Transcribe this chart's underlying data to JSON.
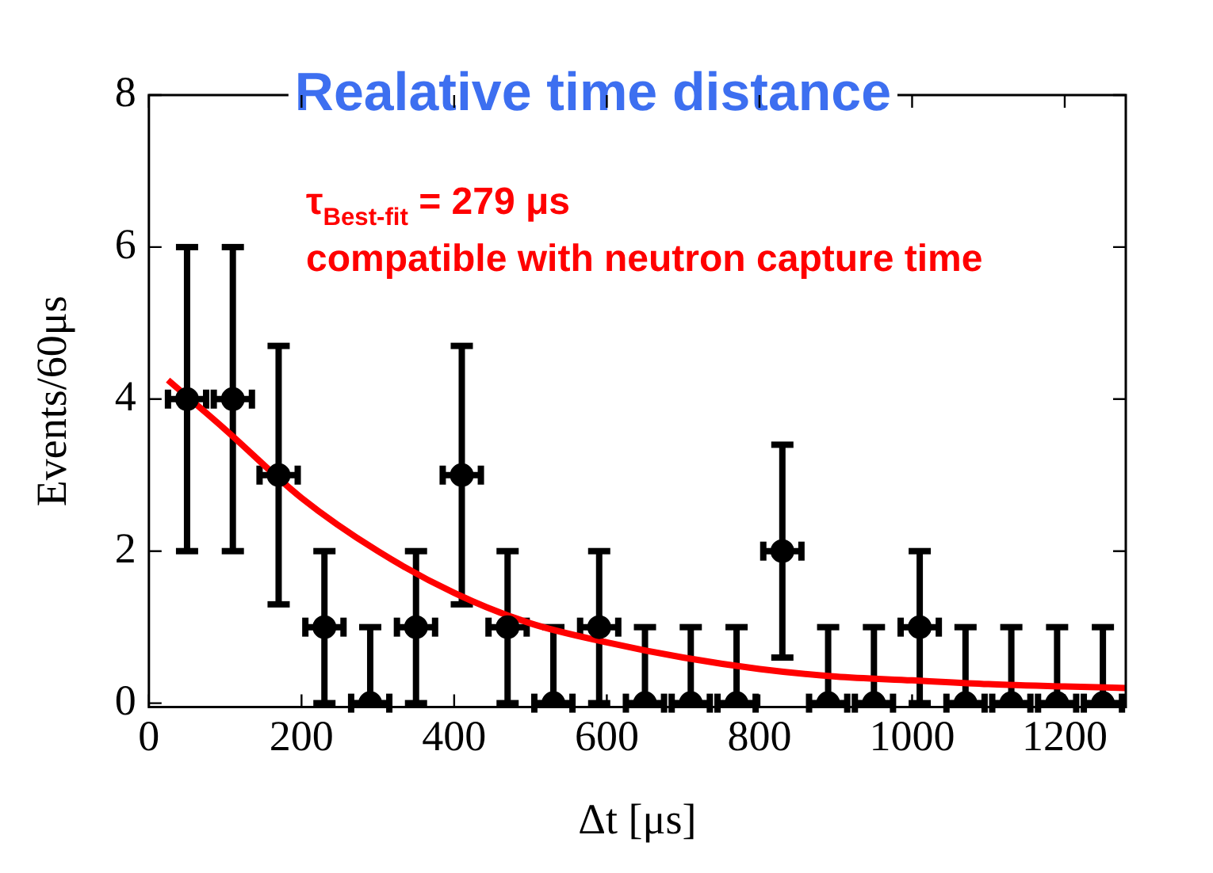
{
  "chart_data": {
    "type": "scatter",
    "title": "Realative time distance",
    "xlabel": "Δt [μs]",
    "ylabel": "Events/60μs",
    "xlim": [
      0,
      1280
    ],
    "xticks": [
      0,
      200,
      400,
      600,
      800,
      1000,
      1200
    ],
    "ylim": [
      -0.05,
      8
    ],
    "yticks": [
      0,
      2,
      4,
      6,
      8
    ],
    "grid": false,
    "legend": false,
    "marker": "circle",
    "annotations": [
      "τ$_{Best-fit}$ = 279 μs",
      "compatible with neutron capture time"
    ],
    "series": [
      {
        "color": "#000000",
        "x": [
          50,
          110,
          170,
          230,
          290,
          350,
          410,
          470,
          530,
          590,
          650,
          710,
          770,
          830,
          890,
          950,
          1010,
          1070,
          1130,
          1190,
          1250
        ],
        "values": [
          4,
          4,
          3,
          1,
          0,
          1,
          3,
          1,
          0,
          1,
          0,
          0,
          0,
          2,
          0,
          0,
          1,
          0,
          0,
          0,
          0
        ],
        "errors": [
          [
            2,
            2
          ],
          [
            2,
            2
          ],
          [
            1.7,
            1.7
          ],
          [
            1,
            1
          ],
          [
            0,
            1
          ],
          [
            1,
            1
          ],
          [
            1.7,
            1.7
          ],
          [
            1,
            1
          ],
          [
            0,
            1
          ],
          [
            1,
            1
          ],
          [
            0,
            1
          ],
          [
            0,
            1
          ],
          [
            0,
            1
          ],
          [
            1.4,
            1.4
          ],
          [
            0,
            1
          ],
          [
            0,
            1
          ],
          [
            1,
            1
          ],
          [
            0,
            1
          ],
          [
            0,
            1
          ],
          [
            0,
            1
          ],
          [
            0,
            1
          ]
        ],
        "xerrors": [
          25,
          25,
          25,
          25,
          25,
          25,
          25,
          25,
          25,
          25,
          25,
          25,
          25,
          25,
          25,
          25,
          25,
          25,
          25,
          25,
          25
        ]
      },
      {
        "type": "line",
        "marker": "none",
        "color": "#ff0000",
        "x": [
          25,
          100,
          200,
          300,
          400,
          500,
          600,
          700,
          800,
          900,
          1000,
          1100,
          1200,
          1280
        ],
        "values": [
          4.25,
          3.6,
          2.7,
          2.0,
          1.45,
          1.05,
          0.8,
          0.6,
          0.45,
          0.35,
          0.3,
          0.25,
          0.22,
          0.2
        ]
      }
    ]
  }
}
